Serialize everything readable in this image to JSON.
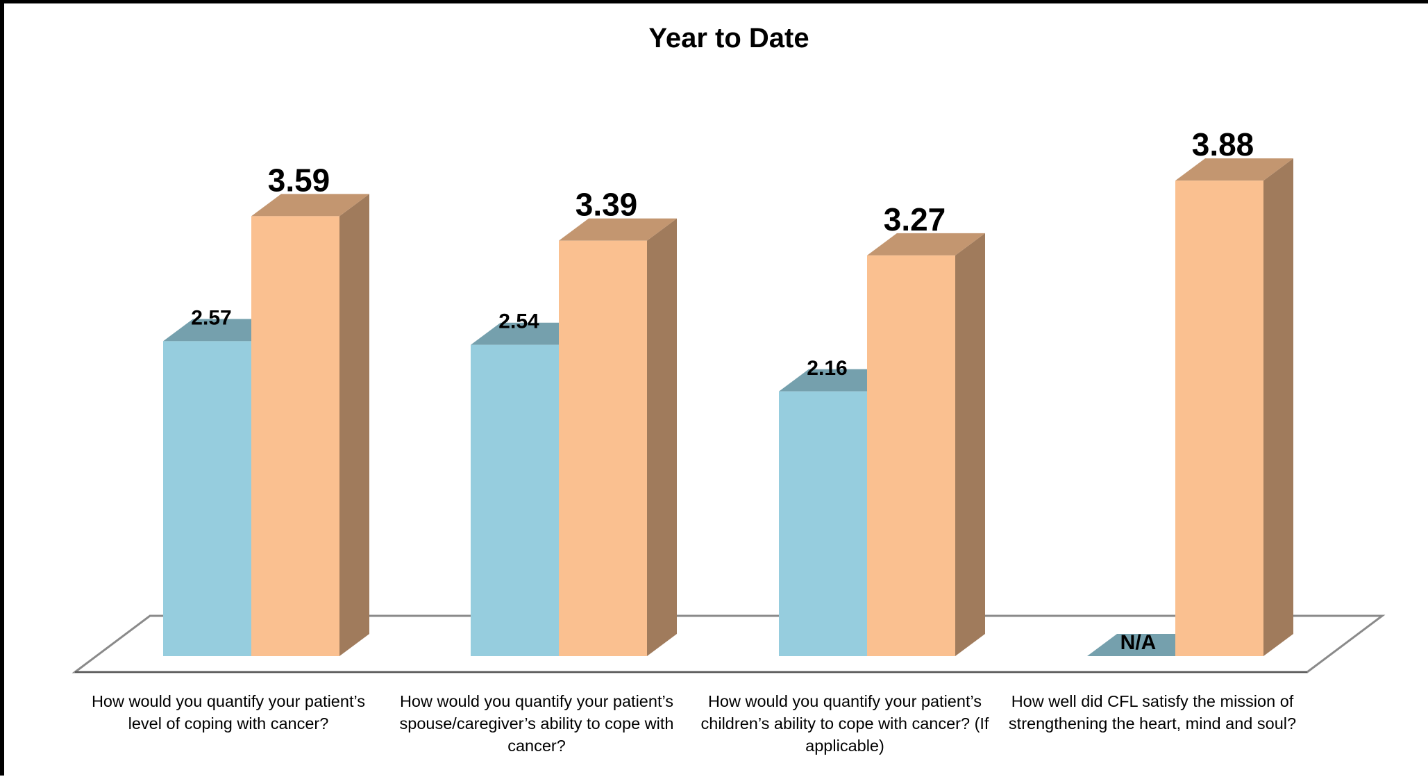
{
  "chart_data": {
    "type": "bar",
    "title": "Year to Date",
    "xlabel": "",
    "ylabel": "",
    "ylim": [
      0,
      4
    ],
    "grid": false,
    "legend": "none",
    "categories": [
      "How would you quantify your patient’s level of coping with cancer?",
      "How would you quantify your patient’s spouse/caregiver’s ability to cope with cancer?",
      "How would you quantify your patient’s children’s ability to cope with cancer? (If applicable)",
      "How well did CFL satisfy the mission of strengthening the heart, mind and soul?"
    ],
    "series": [
      {
        "values": [
          2.57,
          2.54,
          2.16,
          null
        ],
        "labels": [
          "2.57",
          "2.54",
          "2.16",
          "N/A"
        ],
        "color": "#96CDDE"
      },
      {
        "values": [
          3.59,
          3.39,
          3.27,
          3.88
        ],
        "labels": [
          "3.59",
          "3.39",
          "3.27",
          "3.88"
        ],
        "color": "#FAC090"
      }
    ]
  }
}
